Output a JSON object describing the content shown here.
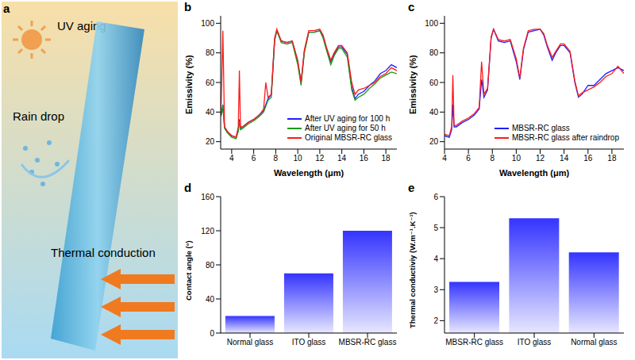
{
  "illustration": {
    "panel": "a",
    "labels": [
      "UV aging",
      "Rain drop",
      "Thermal conduction"
    ]
  },
  "chart_data": [
    {
      "panel": "b",
      "type": "line",
      "x_label": "Wavelength (μm)",
      "y_label": "Emissivity (%)",
      "x": [
        3,
        3.1,
        3.2,
        3.35,
        3.6,
        4,
        4.4,
        4.6,
        4.7,
        4.8,
        5,
        5.5,
        6,
        6.5,
        6.9,
        7.1,
        7.3,
        7.6,
        7.9,
        8.1,
        8.5,
        9,
        9.5,
        10,
        10.3,
        10.6,
        11,
        11.5,
        12,
        12.3,
        12.6,
        13,
        13.3,
        13.7,
        14,
        14.5,
        14.9,
        15.2,
        15.5,
        16,
        16.5,
        17,
        17.5,
        18,
        18.5,
        19
      ],
      "series": [
        {
          "name": "After UV aging for 100 h",
          "color": "#1f1fff",
          "values": [
            38,
            40,
            45,
            30,
            27,
            24,
            23,
            28,
            35,
            29,
            30,
            33,
            35,
            38,
            41,
            45,
            49,
            52,
            89,
            95,
            88,
            87,
            88,
            74,
            60,
            81,
            94,
            94,
            95,
            91,
            83,
            74,
            79,
            84,
            84,
            79,
            57,
            49,
            52,
            54,
            58,
            61,
            66,
            68,
            72,
            70
          ]
        },
        {
          "name": "After UV aging for 50 h",
          "color": "#1a9a1a",
          "values": [
            37,
            39,
            44,
            29,
            26,
            23,
            22,
            27,
            34,
            28,
            29,
            32,
            34,
            37,
            40,
            44,
            48,
            50,
            88,
            95,
            87,
            86,
            87,
            72,
            58,
            80,
            94,
            94,
            95,
            90,
            82,
            72,
            78,
            83,
            83,
            77,
            55,
            48,
            50,
            52,
            56,
            59,
            63,
            65,
            67,
            66
          ]
        },
        {
          "name": "Original MBSR-RC glass",
          "color": "#ff1a1a",
          "values": [
            38,
            60,
            95,
            30,
            27,
            24,
            23,
            30,
            68,
            30,
            30,
            33,
            35,
            38,
            42,
            60,
            50,
            52,
            90,
            96,
            88,
            87,
            88,
            75,
            60,
            82,
            95,
            95,
            96,
            92,
            84,
            75,
            80,
            85,
            85,
            80,
            60,
            52,
            55,
            56,
            58,
            60,
            64,
            66,
            70,
            68
          ]
        }
      ],
      "xlim": [
        3,
        19
      ],
      "xticks": [
        4,
        6,
        8,
        10,
        12,
        14,
        16,
        18
      ],
      "ylim": [
        15,
        105
      ],
      "yticks": [
        20,
        40,
        60,
        80,
        100
      ],
      "legend": "lower right"
    },
    {
      "panel": "c",
      "type": "line",
      "x_label": "Wavelength (μm)",
      "y_label": "Emissivity (%)",
      "x": [
        4,
        4.4,
        4.6,
        4.7,
        4.8,
        5,
        5.5,
        6,
        6.5,
        6.9,
        7.1,
        7.3,
        7.6,
        7.9,
        8.1,
        8.5,
        9,
        9.5,
        10,
        10.3,
        10.6,
        11,
        11.5,
        12,
        12.3,
        12.6,
        13,
        13.3,
        13.7,
        14,
        14.5,
        14.9,
        15.2,
        15.5,
        16,
        16.5,
        17,
        17.5,
        18,
        18.5,
        19
      ],
      "series": [
        {
          "name": "MBSR-RC glass",
          "color": "#1f1fff",
          "values": [
            24,
            23,
            28,
            45,
            30,
            30,
            33,
            35,
            38,
            42,
            62,
            50,
            55,
            90,
            96,
            88,
            87,
            88,
            74,
            62,
            82,
            94,
            95,
            96,
            92,
            84,
            75,
            80,
            85,
            85,
            80,
            60,
            50,
            52,
            58,
            58,
            62,
            66,
            68,
            70,
            68
          ]
        },
        {
          "name": "MBSR-RC glass after raindrop",
          "color": "#ff1a1a",
          "values": [
            25,
            24,
            30,
            65,
            31,
            31,
            34,
            36,
            39,
            43,
            74,
            52,
            56,
            91,
            96,
            89,
            88,
            89,
            76,
            63,
            83,
            95,
            96,
            96,
            93,
            85,
            77,
            81,
            86,
            86,
            81,
            61,
            51,
            53,
            55,
            57,
            60,
            64,
            66,
            71,
            66
          ]
        }
      ],
      "xlim": [
        4,
        19
      ],
      "xticks": [
        4,
        6,
        8,
        10,
        12,
        14,
        16,
        18
      ],
      "ylim": [
        15,
        105
      ],
      "yticks": [
        20,
        40,
        60,
        80,
        100
      ],
      "legend": "lower right"
    },
    {
      "panel": "d",
      "type": "bar",
      "y_label": "Contact angle (°)",
      "categories": [
        "Normal glass",
        "ITO glass",
        "MBSR-RC glass"
      ],
      "values": [
        20,
        70,
        120
      ],
      "color": "#3434ff",
      "ylim": [
        0,
        160
      ],
      "yticks": [
        0,
        40,
        80,
        120,
        160
      ]
    },
    {
      "panel": "e",
      "type": "bar",
      "y_label": "Thermal conductiviy (W.m⁻¹.K⁻¹)",
      "categories": [
        "MBSR-RC glass",
        "ITO glass",
        "Normal glass"
      ],
      "values": [
        3.25,
        5.3,
        4.2
      ],
      "color": "#3434ff",
      "ylim": [
        1.6,
        6
      ],
      "yticks": [
        2,
        3,
        4,
        5,
        6
      ]
    }
  ]
}
